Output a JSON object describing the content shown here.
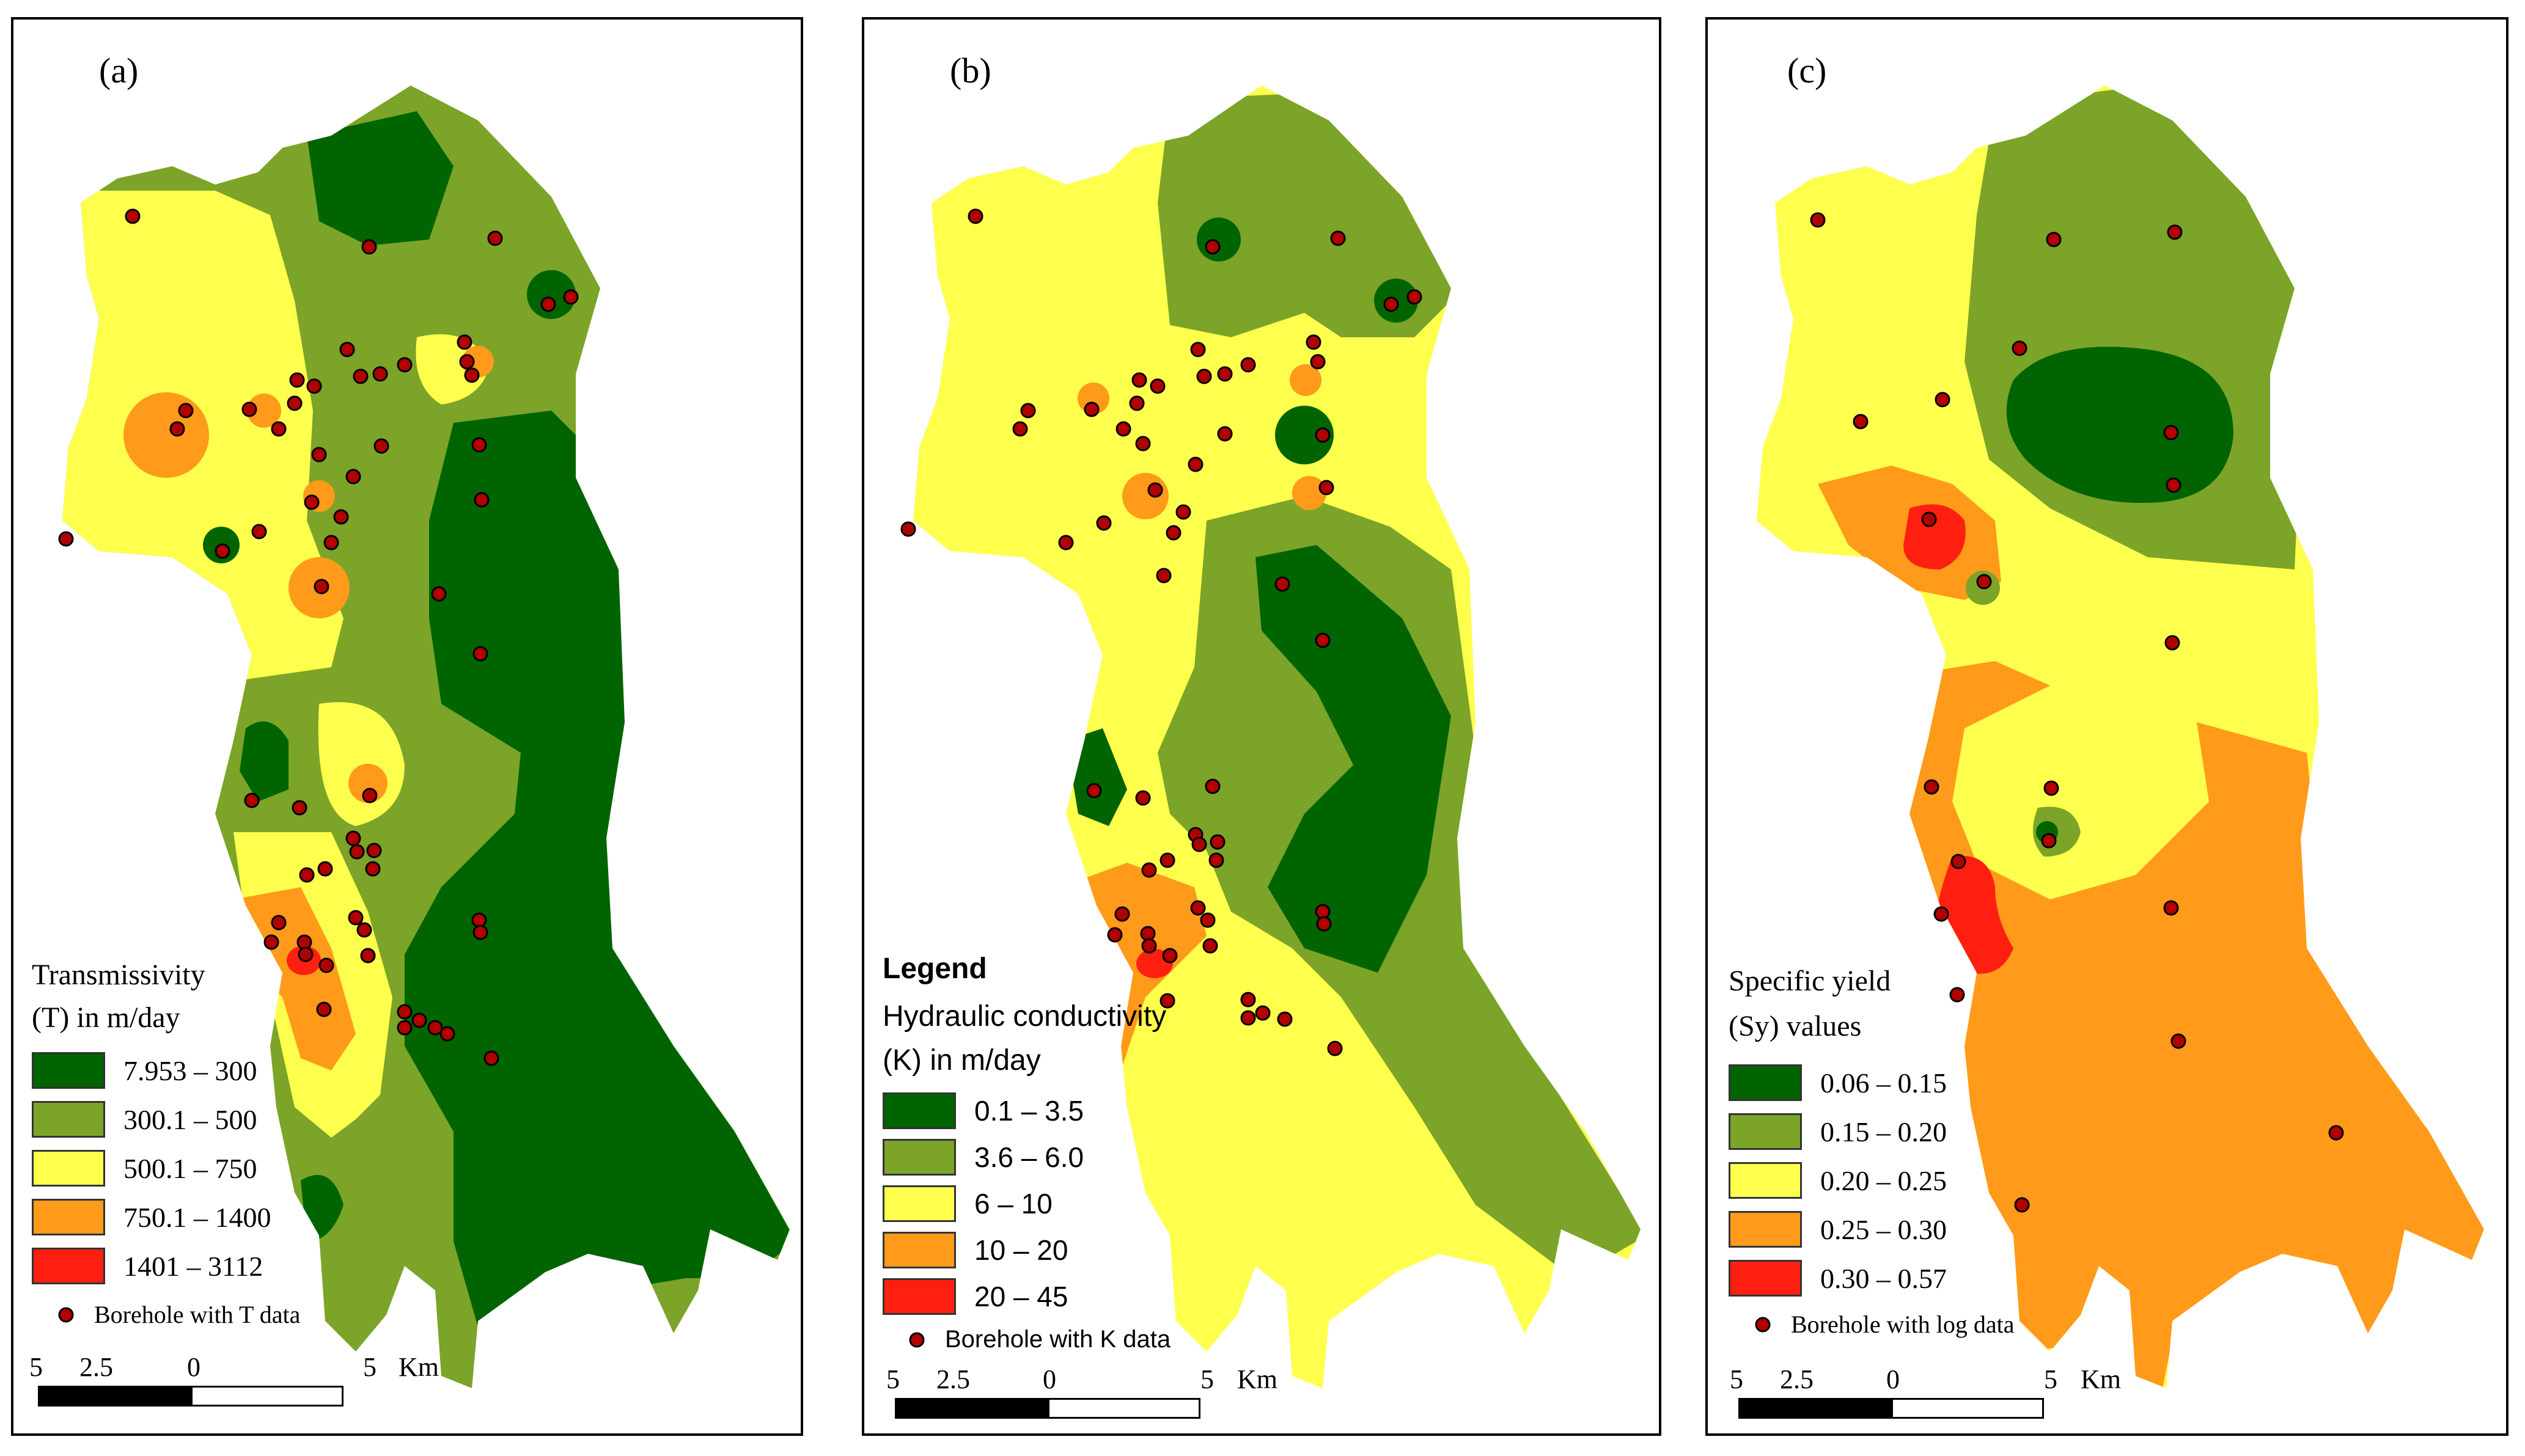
{
  "colors": {
    "dark_green": "#006400",
    "olive_green": "#7ba428",
    "yellow": "#ffff4d",
    "orange": "#ff9a1a",
    "red": "#ff1f10",
    "borehole_fill": "#b00000"
  },
  "panels": [
    {
      "label": "(a)",
      "legend": {
        "title_lines": [
          "Transmissivity",
          "(T) in m/day"
        ],
        "classes": [
          {
            "range": "7.953 – 300",
            "color": "#006400"
          },
          {
            "range": "300.1 – 500",
            "color": "#7ba428"
          },
          {
            "range": "500.1 – 750",
            "color": "#ffff4d"
          },
          {
            "range": "750.1 – 1400",
            "color": "#ff9a1a"
          },
          {
            "range": "1401 – 3112",
            "color": "#ff1f10"
          }
        ],
        "borehole_label": "Borehole with T data"
      },
      "scale": {
        "labels": [
          "5",
          "2.5",
          "0",
          "5",
          "Km"
        ]
      }
    },
    {
      "label": "(b)",
      "legend": {
        "heading": "Legend",
        "title_lines": [
          "Hydraulic conductivity",
          "(K) in m/day"
        ],
        "classes": [
          {
            "range": "0.1 – 3.5",
            "color": "#006400"
          },
          {
            "range": "3.6 – 6.0",
            "color": "#7ba428"
          },
          {
            "range": "6 – 10",
            "color": "#ffff4d"
          },
          {
            "range": "10 – 20",
            "color": "#ff9a1a"
          },
          {
            "range": "20 – 45",
            "color": "#ff1f10"
          }
        ],
        "borehole_label": "Borehole with K data"
      },
      "scale": {
        "labels": [
          "5",
          "2.5",
          "0",
          "5",
          "Km"
        ]
      }
    },
    {
      "label": "(c)",
      "legend": {
        "title_lines": [
          "Specific yield",
          "(Sy) values"
        ],
        "classes": [
          {
            "range": "0.06 – 0.15",
            "color": "#006400"
          },
          {
            "range": "0.15 – 0.20",
            "color": "#7ba428"
          },
          {
            "range": "0.20 – 0.25",
            "color": "#ffff4d"
          },
          {
            "range": "0.25 – 0.30",
            "color": "#ff9a1a"
          },
          {
            "range": "0.30 – 0.57",
            "color": "#ff1f10"
          }
        ],
        "borehole_label": "Borehole with log data"
      },
      "scale": {
        "labels": [
          "5",
          "2.5",
          "0",
          "5",
          "Km"
        ]
      }
    }
  ]
}
